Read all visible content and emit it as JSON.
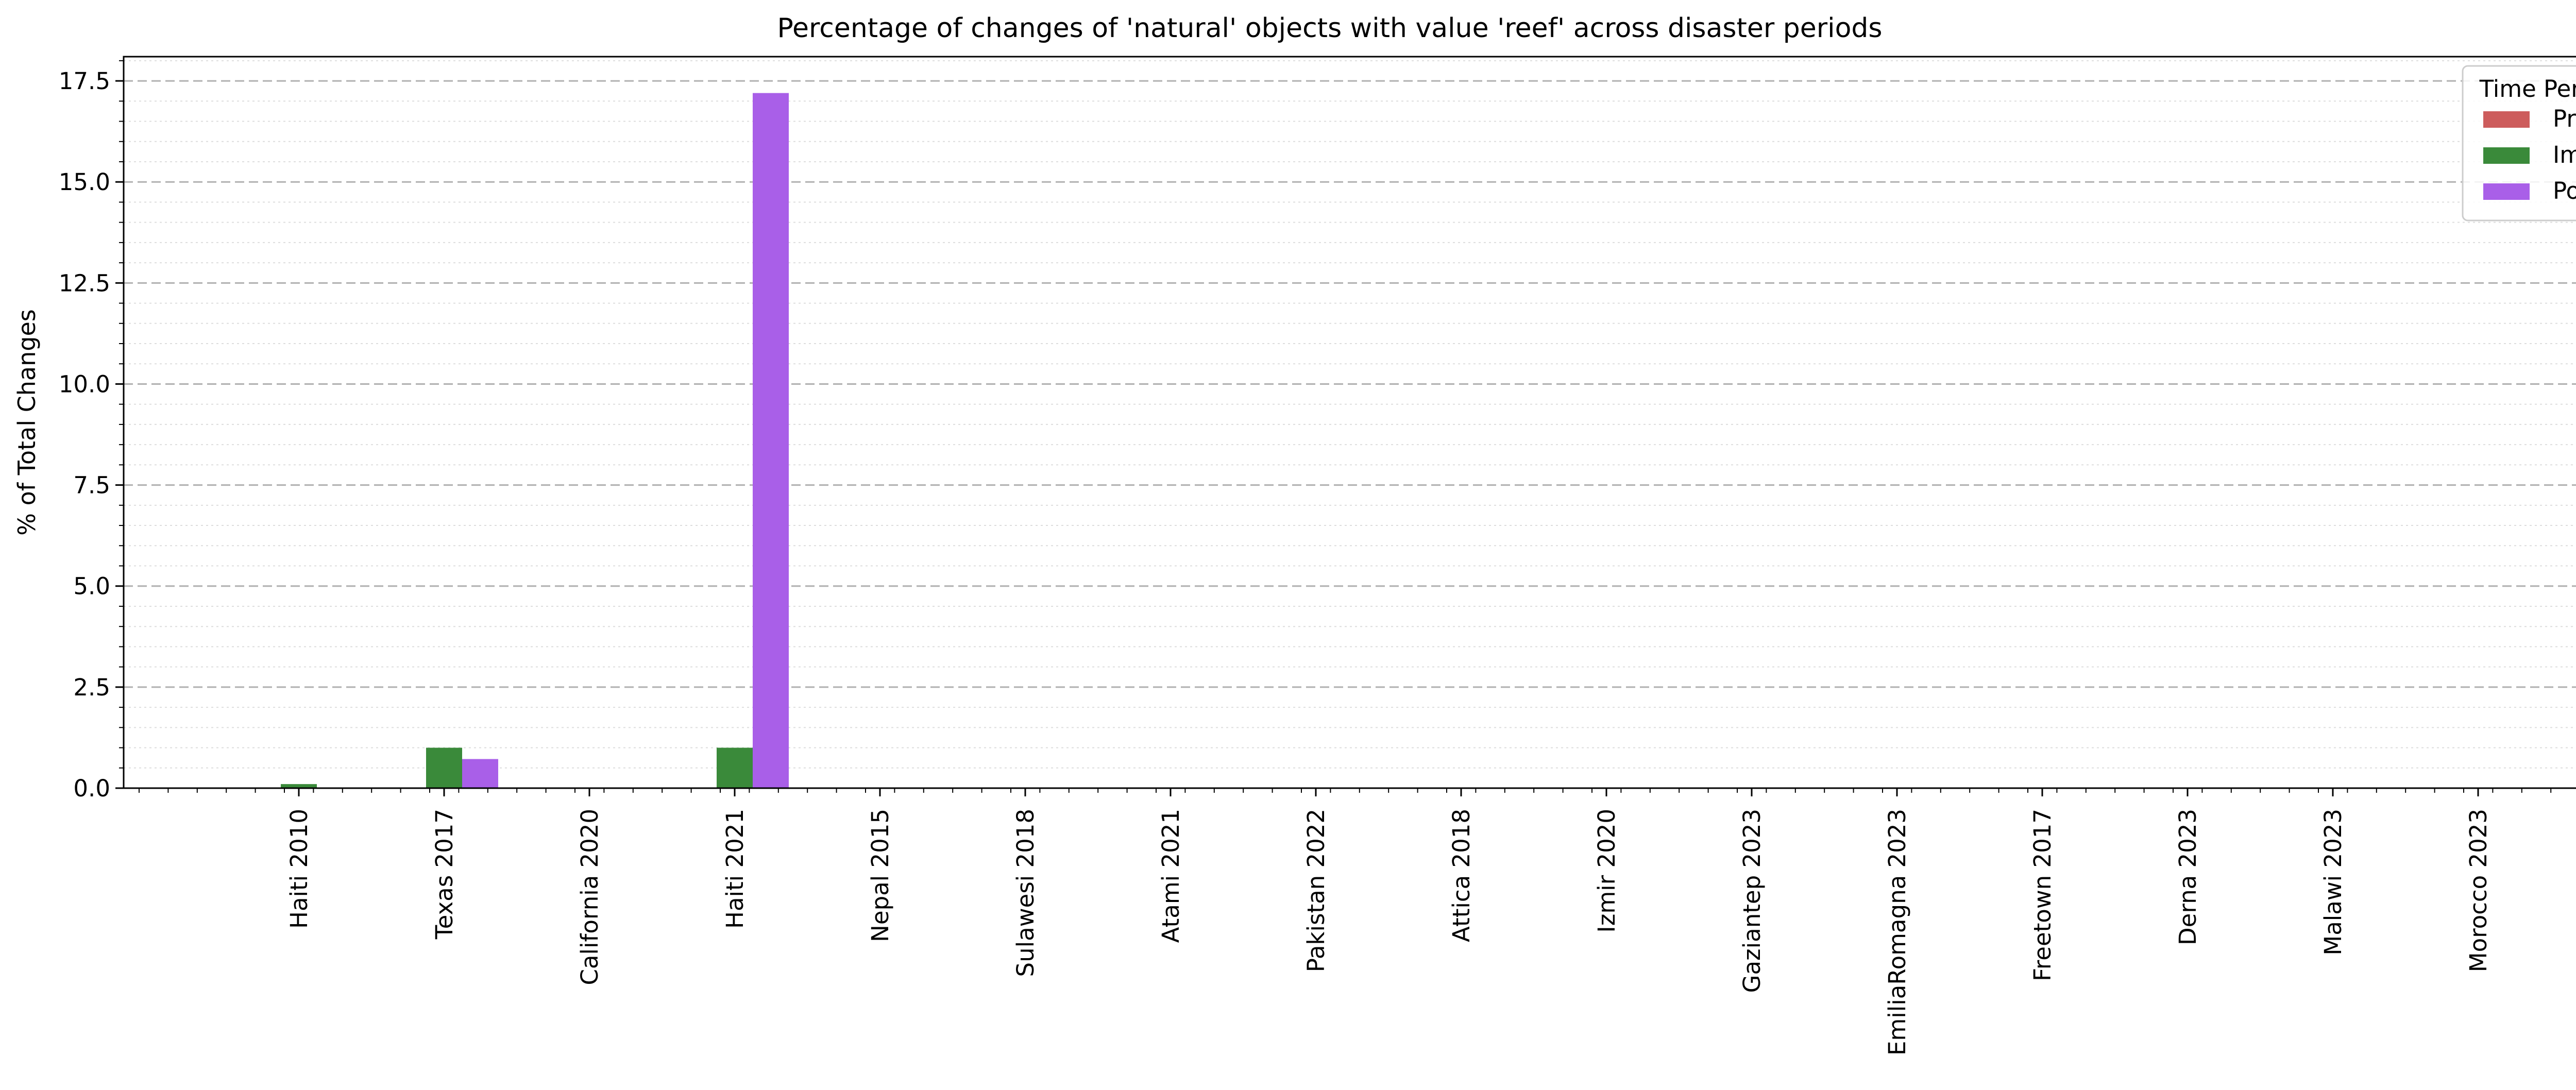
{
  "chart_data": {
    "type": "bar",
    "title": "Percentage of changes of 'natural' objects with value 'reef' across disaster periods",
    "xlabel": "",
    "ylabel": "% of Total Changes",
    "ylim": [
      0,
      18.1
    ],
    "yticks": [
      0.0,
      2.5,
      5.0,
      7.5,
      10.0,
      12.5,
      15.0,
      17.5
    ],
    "ytick_labels": [
      "0.0",
      "2.5",
      "5.0",
      "7.5",
      "10.0",
      "12.5",
      "15.0",
      "17.5"
    ],
    "grid": true,
    "legend_title": "Time Period",
    "legend_position": "top-right",
    "categories": [
      "Haiti 2010",
      "Texas 2017",
      "California 2020",
      "Haiti 2021",
      "Nepal 2015",
      "Sulawesi 2018",
      "Atami 2021",
      "Pakistan 2022",
      "Attica 2018",
      "Izmir 2020",
      "Gaziantep 2023",
      "EmiliaRomagna 2023",
      "Freetown 2017",
      "Derna 2023",
      "Malawi 2023",
      "Morocco 2023"
    ],
    "series": [
      {
        "name": "Pre",
        "color": "#cd5c5c",
        "values": [
          0,
          0,
          0,
          0,
          0,
          0,
          0,
          0,
          0,
          0,
          0,
          0,
          0,
          0,
          0,
          0
        ]
      },
      {
        "name": "Imm",
        "color": "#3a8a3a",
        "values": [
          0.1,
          1.0,
          0,
          1.0,
          0,
          0,
          0,
          0,
          0,
          0,
          0,
          0,
          0,
          0,
          0,
          0
        ]
      },
      {
        "name": "Post",
        "color": "#a95fe8",
        "values": [
          0,
          0.72,
          0,
          17.2,
          0,
          0,
          0,
          0,
          0,
          0,
          0,
          0,
          0,
          0,
          0,
          0
        ]
      }
    ]
  }
}
